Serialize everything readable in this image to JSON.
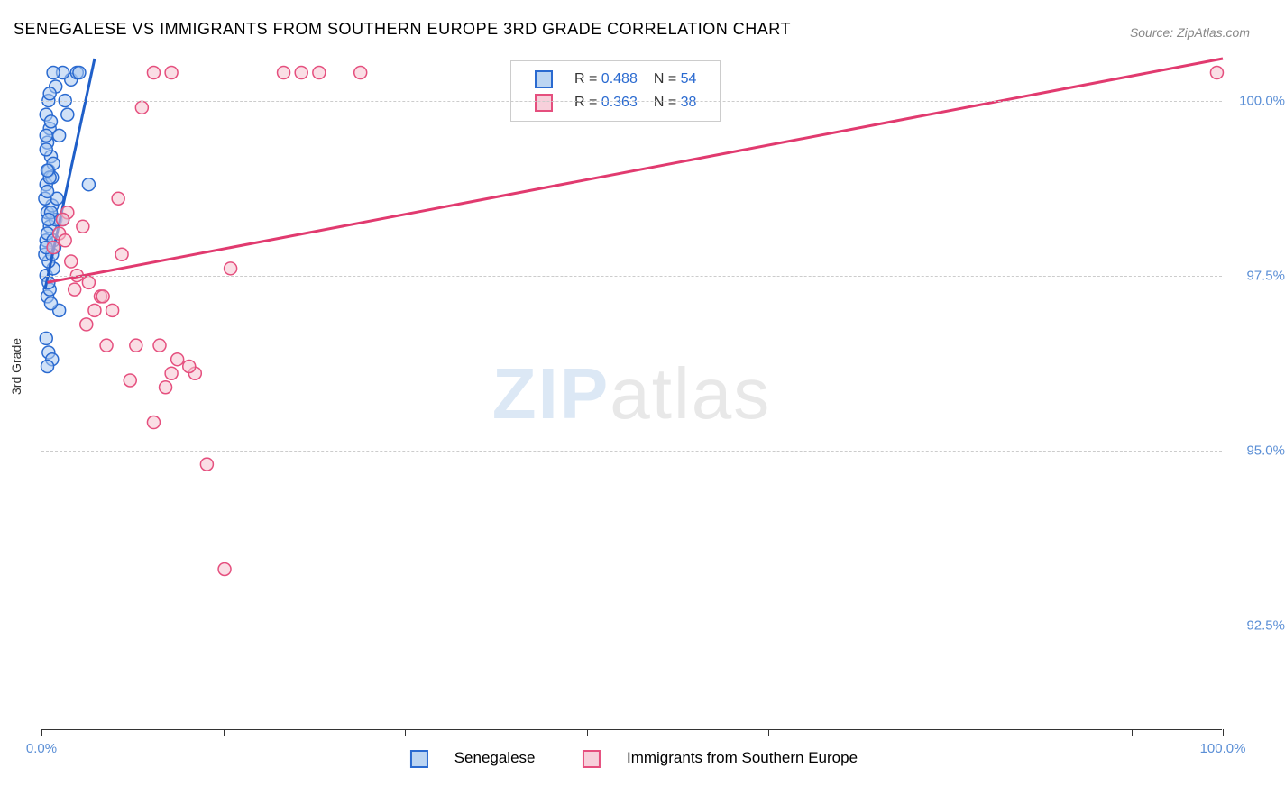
{
  "title": "SENEGALESE VS IMMIGRANTS FROM SOUTHERN EUROPE 3RD GRADE CORRELATION CHART",
  "title_color": "#333333",
  "source": "Source: ZipAtlas.com",
  "ylabel": "3rd Grade",
  "watermark_bold": "ZIP",
  "watermark_light": "atlas",
  "xlim": [
    0,
    100
  ],
  "ylim": [
    91.0,
    100.6
  ],
  "x_ticks": [
    0,
    15.4,
    30.8,
    46.2,
    61.5,
    76.9,
    92.3,
    100
  ],
  "x_labels_shown": {
    "0": "0.0%",
    "100": "100.0%"
  },
  "y_gridlines": [
    92.5,
    95.0,
    97.5,
    100.0
  ],
  "y_labels": {
    "92.5": "92.5%",
    "95.0": "95.0%",
    "97.5": "97.5%",
    "100.0": "100.0%"
  },
  "tick_label_color": "#5b8fd6",
  "series": [
    {
      "name": "Senegalese",
      "fill": "#a9c9f0",
      "stroke": "#2a6ad0",
      "swatch_fill": "#bcd5f2",
      "line_color": "#1f5fc9",
      "R_label": "R = ",
      "R": "0.488",
      "N_label": "N = ",
      "N": "54",
      "trend": {
        "x1": 0.3,
        "y1": 97.3,
        "x2": 4.5,
        "y2": 100.6
      },
      "points": [
        [
          0.5,
          97.2
        ],
        [
          0.7,
          97.3
        ],
        [
          0.4,
          97.5
        ],
        [
          1.0,
          97.6
        ],
        [
          0.6,
          97.7
        ],
        [
          0.3,
          97.8
        ],
        [
          1.5,
          97.0
        ],
        [
          0.8,
          97.1
        ],
        [
          0.4,
          96.6
        ],
        [
          0.6,
          96.4
        ],
        [
          0.9,
          96.3
        ],
        [
          0.5,
          96.2
        ],
        [
          0.4,
          98.0
        ],
        [
          0.7,
          98.2
        ],
        [
          1.2,
          98.3
        ],
        [
          0.5,
          98.4
        ],
        [
          0.9,
          98.5
        ],
        [
          0.4,
          98.8
        ],
        [
          1.8,
          98.3
        ],
        [
          0.6,
          99.0
        ],
        [
          0.8,
          99.2
        ],
        [
          1.0,
          99.1
        ],
        [
          0.5,
          99.4
        ],
        [
          1.3,
          98.6
        ],
        [
          0.7,
          99.6
        ],
        [
          2.0,
          100.0
        ],
        [
          2.5,
          100.3
        ],
        [
          1.8,
          100.4
        ],
        [
          1.0,
          100.4
        ],
        [
          3.0,
          100.4
        ],
        [
          0.4,
          99.8
        ],
        [
          0.6,
          100.0
        ],
        [
          1.5,
          99.5
        ],
        [
          0.9,
          98.9
        ],
        [
          0.3,
          98.6
        ],
        [
          1.1,
          97.9
        ],
        [
          0.5,
          98.1
        ],
        [
          0.7,
          98.9
        ],
        [
          4.0,
          98.8
        ],
        [
          0.8,
          99.7
        ],
        [
          1.2,
          100.2
        ],
        [
          0.4,
          99.3
        ],
        [
          0.6,
          97.4
        ],
        [
          0.9,
          97.8
        ],
        [
          0.5,
          98.7
        ],
        [
          0.7,
          100.1
        ],
        [
          1.0,
          98.0
        ],
        [
          0.4,
          97.9
        ],
        [
          2.2,
          99.8
        ],
        [
          0.8,
          98.4
        ],
        [
          0.5,
          99.0
        ],
        [
          0.6,
          98.3
        ],
        [
          0.4,
          99.5
        ],
        [
          3.2,
          100.4
        ]
      ]
    },
    {
      "name": "Immigrants from Southern Europe",
      "fill": "#f5c2d0",
      "stroke": "#e54f7e",
      "swatch_fill": "#f7d0db",
      "line_color": "#e13a6f",
      "R_label": "R = ",
      "R": "0.363",
      "N_label": "N = ",
      "N": "38",
      "trend": {
        "x1": 0.5,
        "y1": 97.4,
        "x2": 100,
        "y2": 100.6
      },
      "points": [
        [
          9.5,
          100.4
        ],
        [
          11.0,
          100.4
        ],
        [
          20.5,
          100.4
        ],
        [
          22.0,
          100.4
        ],
        [
          23.5,
          100.4
        ],
        [
          27.0,
          100.4
        ],
        [
          99.5,
          100.4
        ],
        [
          8.5,
          99.9
        ],
        [
          1.5,
          98.1
        ],
        [
          2.0,
          98.0
        ],
        [
          3.0,
          97.5
        ],
        [
          6.5,
          98.6
        ],
        [
          5.0,
          97.2
        ],
        [
          6.0,
          97.0
        ],
        [
          2.5,
          97.7
        ],
        [
          16.0,
          97.6
        ],
        [
          4.0,
          97.4
        ],
        [
          3.5,
          98.2
        ],
        [
          5.5,
          96.5
        ],
        [
          8.0,
          96.5
        ],
        [
          10.0,
          96.5
        ],
        [
          11.5,
          96.3
        ],
        [
          7.5,
          96.0
        ],
        [
          11.0,
          96.1
        ],
        [
          13.0,
          96.1
        ],
        [
          10.5,
          95.9
        ],
        [
          9.5,
          95.4
        ],
        [
          14.0,
          94.8
        ],
        [
          15.5,
          93.3
        ],
        [
          1.0,
          97.9
        ],
        [
          2.2,
          98.4
        ],
        [
          4.5,
          97.0
        ],
        [
          3.8,
          96.8
        ],
        [
          6.8,
          97.8
        ],
        [
          1.8,
          98.3
        ],
        [
          5.2,
          97.2
        ],
        [
          2.8,
          97.3
        ],
        [
          12.5,
          96.2
        ]
      ]
    }
  ],
  "legend_bottom": {
    "s1": "Senegalese",
    "s2": "Immigrants from Southern Europe"
  },
  "text_color": "#333333",
  "value_color": "#2a6ad0"
}
